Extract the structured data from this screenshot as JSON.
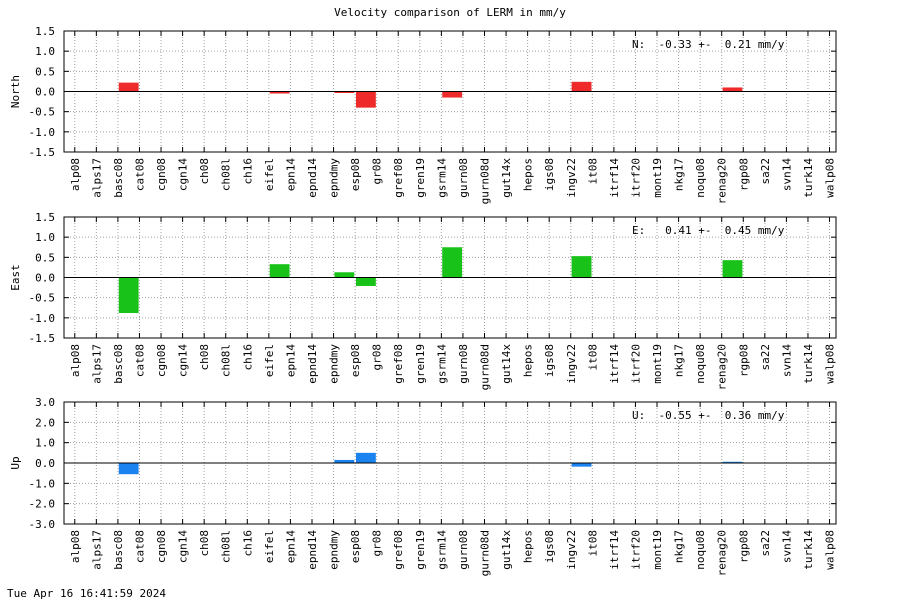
{
  "title": "Velocity comparison of LERM in mm/y",
  "timestamp": "Tue Apr 16 16:41:59 2024",
  "chart_data": [
    {
      "type": "bar",
      "ylabel": "North",
      "annotation": "N:  -0.33 +-  0.21 mm/y",
      "ylim": [
        -1.5,
        1.5
      ],
      "yticks": [
        1.5,
        1.0,
        0.5,
        0.0,
        -0.5,
        -1.0,
        -1.5
      ],
      "ytick_labels": [
        "1.5",
        "1.0",
        "0.5",
        "0.0",
        "-0.5",
        "-1.0",
        "-1.5"
      ],
      "color": "#ee2a2a",
      "grid": true,
      "categories": [
        "alp08",
        "alps17",
        "basc08",
        "cat08",
        "cgn08",
        "cgn14",
        "ch08",
        "ch08l",
        "ch16",
        "eifel",
        "epn14",
        "epnd14",
        "epndmy",
        "esp08",
        "gr08",
        "gref08",
        "gren19",
        "gsrm14",
        "gurn08",
        "gurn08d",
        "gut14x",
        "hepos",
        "igs08",
        "ingv22",
        "it08",
        "itrf14",
        "itrf20",
        "mont19",
        "nkg17",
        "noqu08",
        "renag20",
        "rgp08",
        "sa22",
        "svn14",
        "turk14",
        "walp08"
      ],
      "values": [
        0,
        0,
        0.22,
        0,
        0,
        0,
        0,
        0,
        0,
        -0.05,
        0,
        0,
        -0.03,
        -0.4,
        0,
        0,
        0,
        -0.15,
        0,
        0,
        0,
        0,
        0,
        0.24,
        0,
        0,
        0,
        0,
        0,
        0,
        0.1,
        0,
        0,
        0,
        0,
        0
      ]
    },
    {
      "type": "bar",
      "ylabel": "East",
      "annotation": "E:   0.41 +-  0.45 mm/y",
      "ylim": [
        -1.5,
        1.5
      ],
      "yticks": [
        1.5,
        1.0,
        0.5,
        0.0,
        -0.5,
        -1.0,
        -1.5
      ],
      "ytick_labels": [
        "1.5",
        "1.0",
        "0.5",
        "0.0",
        "-0.5",
        "-1.0",
        "-1.5"
      ],
      "color": "#19c219",
      "grid": true,
      "categories": [
        "alp08",
        "alps17",
        "basc08",
        "cat08",
        "cgn08",
        "cgn14",
        "ch08",
        "ch08l",
        "ch16",
        "eifel",
        "epn14",
        "epnd14",
        "epndmy",
        "esp08",
        "gr08",
        "gref08",
        "gren19",
        "gsrm14",
        "gurn08",
        "gurn08d",
        "gut14x",
        "hepos",
        "igs08",
        "ingv22",
        "it08",
        "itrf14",
        "itrf20",
        "mont19",
        "nkg17",
        "noqu08",
        "renag20",
        "rgp08",
        "sa22",
        "svn14",
        "turk14",
        "walp08"
      ],
      "values": [
        0,
        0,
        -0.88,
        0,
        0,
        0,
        0,
        0,
        0,
        0.33,
        0,
        0,
        0.13,
        -0.21,
        0,
        0,
        0,
        0.75,
        0,
        0,
        0,
        0,
        0,
        0.53,
        0,
        0,
        0,
        0,
        0,
        0,
        0.43,
        0,
        0,
        0,
        0,
        0
      ]
    },
    {
      "type": "bar",
      "ylabel": "Up",
      "annotation": "U:  -0.55 +-  0.36 mm/y",
      "ylim": [
        -3.0,
        3.0
      ],
      "yticks": [
        3.0,
        2.0,
        1.0,
        0.0,
        -1.0,
        -2.0,
        -3.0
      ],
      "ytick_labels": [
        "3.0",
        "2.0",
        "1.0",
        "0.0",
        "-1.0",
        "-2.0",
        "-3.0"
      ],
      "color": "#1a83f0",
      "grid": true,
      "categories": [
        "alp08",
        "alps17",
        "basc08",
        "cat08",
        "cgn08",
        "cgn14",
        "ch08",
        "ch08l",
        "ch16",
        "eifel",
        "epn14",
        "epnd14",
        "epndmy",
        "esp08",
        "gr08",
        "gref08",
        "gren19",
        "gsrm14",
        "gurn08",
        "gurn08d",
        "gut14x",
        "hepos",
        "igs08",
        "ingv22",
        "it08",
        "itrf14",
        "itrf20",
        "mont19",
        "nkg17",
        "noqu08",
        "renag20",
        "rgp08",
        "sa22",
        "svn14",
        "turk14",
        "walp08"
      ],
      "values": [
        0,
        0,
        -0.55,
        0,
        0,
        0,
        0,
        0,
        0,
        0,
        0,
        0,
        0.15,
        0.5,
        0,
        0,
        0,
        0,
        0,
        0,
        0,
        0,
        0,
        -0.18,
        0,
        0,
        0,
        0,
        0,
        0,
        0.06,
        0,
        0,
        0,
        0,
        0
      ]
    }
  ]
}
